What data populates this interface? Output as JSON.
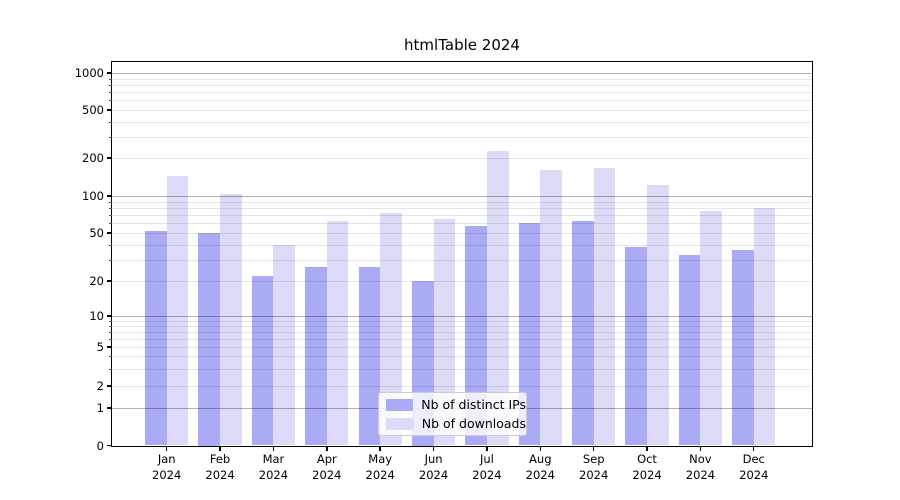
{
  "title": "htmlTable 2024",
  "legend": {
    "items": [
      {
        "label": "Nb of distinct IPs",
        "color": "#aaaaf5"
      },
      {
        "label": "Nb of downloads",
        "color": "#dcdcf8"
      }
    ]
  },
  "chart_data": {
    "type": "bar",
    "title": "htmlTable 2024",
    "categories": [
      "Jan",
      "Feb",
      "Mar",
      "Apr",
      "May",
      "Jun",
      "Jul",
      "Aug",
      "Sep",
      "Oct",
      "Nov",
      "Dec"
    ],
    "category_year": "2024",
    "series": [
      {
        "name": "Nb of distinct IPs",
        "color": "#aaaaf5",
        "values": [
          52,
          50,
          22,
          26,
          26,
          20,
          57,
          60,
          63,
          38,
          33,
          36
        ]
      },
      {
        "name": "Nb of downloads",
        "color": "#dcdcf8",
        "values": [
          145,
          103,
          40,
          63,
          73,
          65,
          230,
          160,
          168,
          122,
          75,
          80
        ]
      }
    ],
    "xlabel": "",
    "ylabel": "",
    "yscale": "symlog",
    "yticks": [
      0,
      1,
      2,
      5,
      10,
      20,
      50,
      100,
      200,
      500,
      1000
    ],
    "ylim": [
      0,
      1250
    ],
    "grid": "on",
    "legend_position": "lower center"
  }
}
